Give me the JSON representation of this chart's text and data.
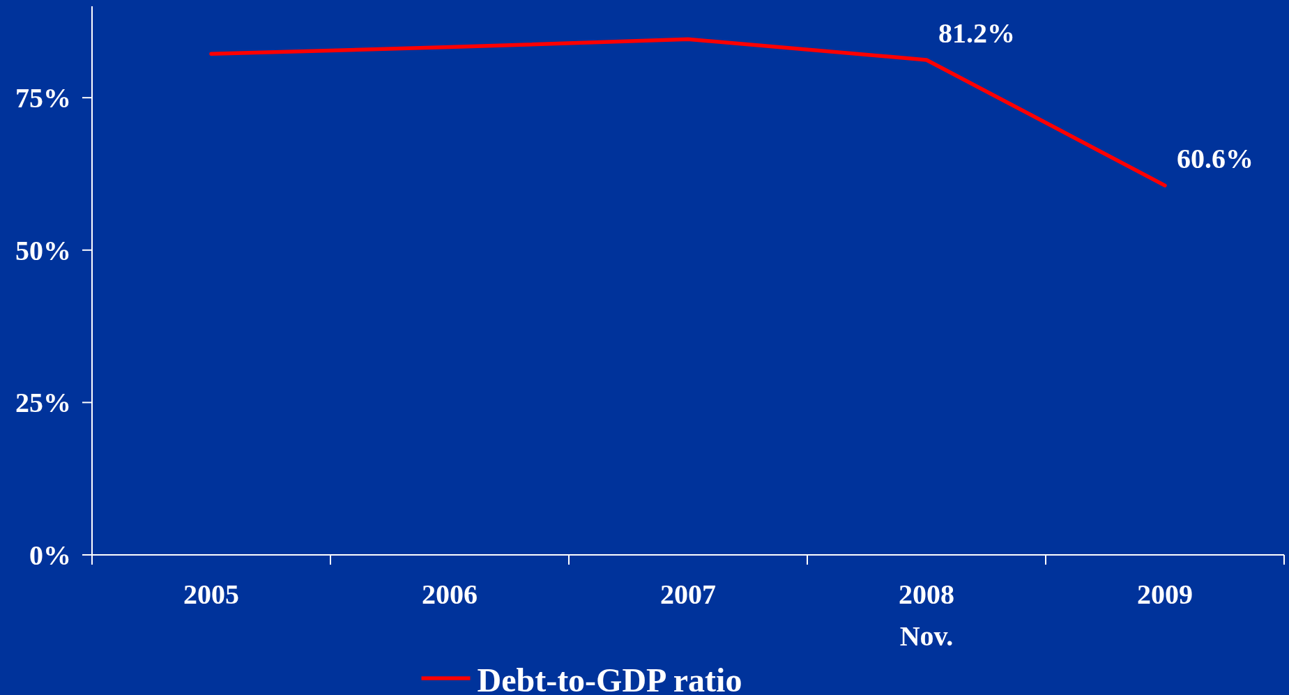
{
  "chart_data": {
    "type": "line",
    "categories": [
      "2005",
      "2006",
      "2007",
      "2008\nNov.",
      "2009"
    ],
    "series": [
      {
        "name": "Debt-to-GDP ratio",
        "color": "#ff0000",
        "values": [
          82.2,
          83.3,
          84.6,
          81.2,
          60.6
        ],
        "value_labels": [
          null,
          null,
          null,
          "81.2%",
          "60.6%"
        ]
      }
    ],
    "ylim": [
      0,
      90
    ],
    "yticks": [
      {
        "value": 0,
        "label": "0%"
      },
      {
        "value": 25,
        "label": "25%"
      },
      {
        "value": 50,
        "label": "50%"
      },
      {
        "value": 75,
        "label": "75%"
      }
    ],
    "grid": false,
    "legend": "bottom",
    "marker": "none",
    "line_style": "solid"
  }
}
